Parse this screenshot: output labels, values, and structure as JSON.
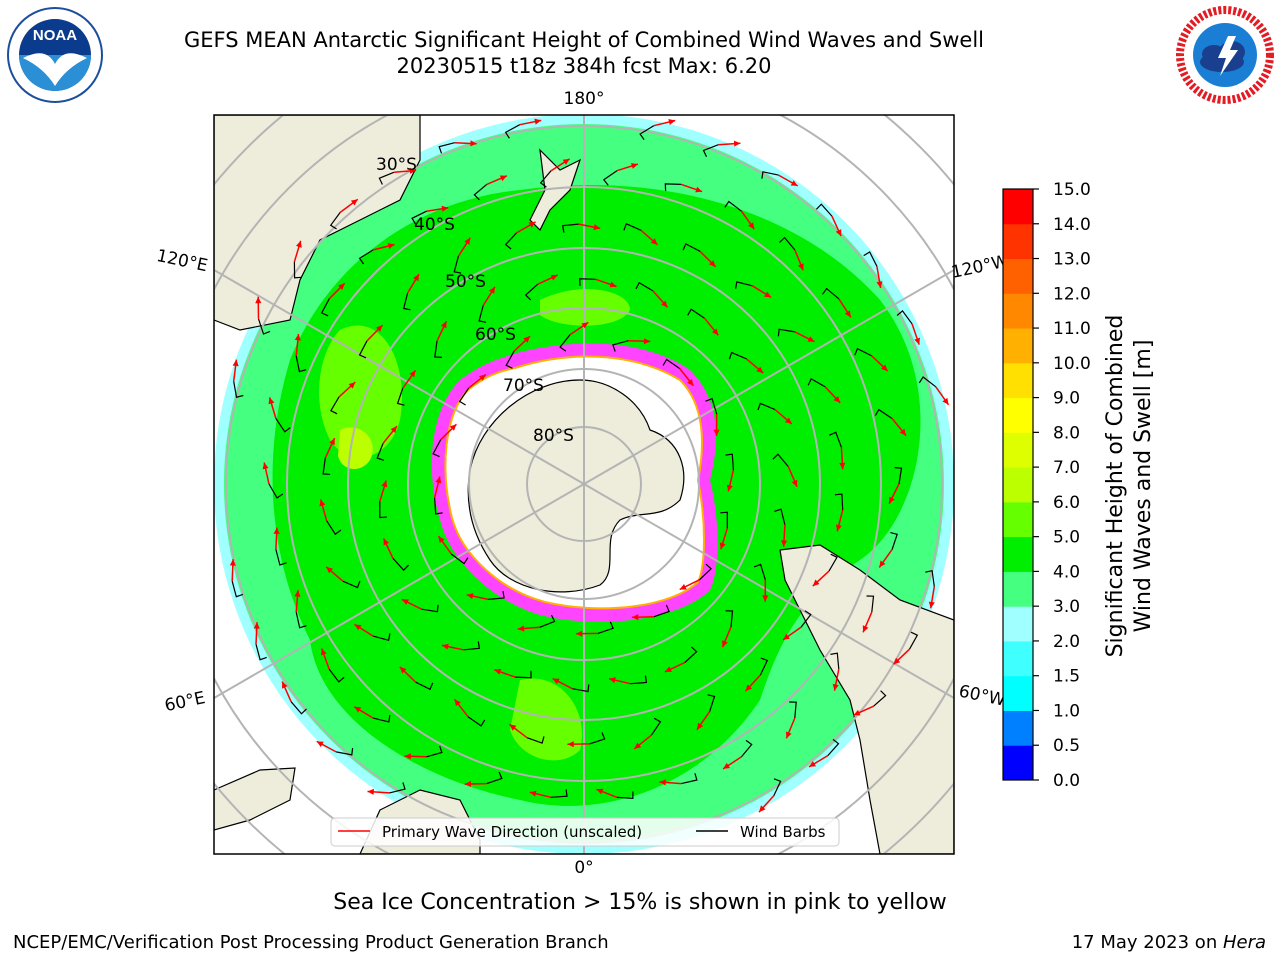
{
  "header": {
    "title_line1": "GEFS MEAN Antarctic Significant Height of Combined Wind Waves and Swell",
    "title_line2": "20230515 t18z 384h fcst   Max: 6.20"
  },
  "logos": {
    "left": {
      "icon": "noaa-logo",
      "text": "NOAA"
    },
    "right": {
      "icon": "national-weather-service-logo"
    }
  },
  "map": {
    "projection": "south-polar-stereographic",
    "longitude_labels": {
      "top": "180°",
      "upper_left": "120°E",
      "upper_right": "120°W",
      "lower_left": "60°E",
      "lower_right": "60°W",
      "bottom": "0°"
    },
    "latitude_labels": [
      "30°S",
      "40°S",
      "50°S",
      "60°S",
      "70°S",
      "80°S"
    ],
    "colors": {
      "land": "#eeecdb",
      "antarctic_ice_shelf": "#ffffff",
      "sea_ice": "#ff44ff",
      "primary_wave_arrow": "#ff0000",
      "wind_barb": "#000000",
      "grid": "#b4b4b4"
    },
    "legend": {
      "items": [
        {
          "label": "Primary Wave Direction (unscaled)",
          "color": "#ff0000"
        },
        {
          "label": "Wind Barbs",
          "color": "#000000"
        }
      ]
    }
  },
  "colorbar": {
    "label": "Significant Height of Combined Wind Waves and Swell [m]",
    "label_line1": "Significant Height of Combined",
    "label_line2": "Wind Waves and Swell [m]",
    "ticks": [
      "0.0",
      "0.5",
      "1.0",
      "1.5",
      "2.0",
      "3.0",
      "4.0",
      "5.0",
      "6.0",
      "7.0",
      "8.0",
      "9.0",
      "10.0",
      "11.0",
      "12.0",
      "13.0",
      "14.0",
      "15.0"
    ],
    "colors": [
      "#0000ff",
      "#0080ff",
      "#00ffff",
      "#40ffff",
      "#a0ffff",
      "#44ff80",
      "#00ee00",
      "#66ff00",
      "#bbff00",
      "#ddff00",
      "#ffff00",
      "#ffe000",
      "#ffb000",
      "#ff8800",
      "#ff6000",
      "#ff3300",
      "#ff0000"
    ]
  },
  "footer": {
    "ice_note": "Sea Ice Concentration > 15% is shown in pink to yellow",
    "left": "NCEP/EMC/Verification Post Processing Product Generation Branch",
    "right_date": "17 May 2023 on ",
    "right_host": "Hera"
  }
}
